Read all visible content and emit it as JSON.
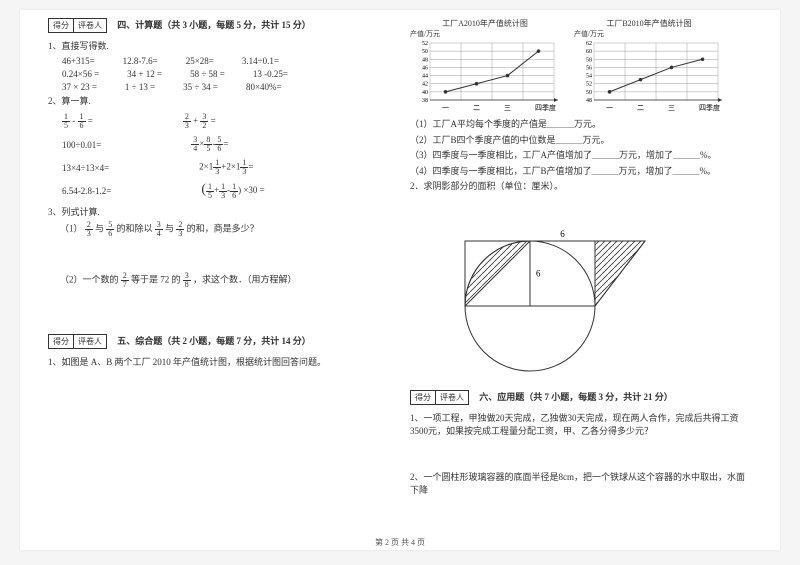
{
  "scorebox": {
    "c1": "得分",
    "c2": "评卷人"
  },
  "section4": {
    "title": "四、计算题（共 3 小题，每题 5 分，共计 15 分）",
    "q1": "1、直接写得数.",
    "row1": [
      "46+315=",
      "12.8-7.6=",
      "25×28=",
      "3.14÷0.1="
    ],
    "row2": [
      "0.24×56 =",
      "34 + 12 =",
      "58 ÷ 58 =",
      "13 -0.25="
    ],
    "row3": [
      "37 × 23 =",
      "1 ÷ 13 =",
      "35 ÷ 34 =",
      "80×40%="
    ],
    "q2": "2、算一算.",
    "f1a": {
      "n": "1",
      "d": "5"
    },
    "f1b": {
      "n": "1",
      "d": "6"
    },
    "f1op": "-",
    "f1eq": "=",
    "f2a": {
      "n": "2",
      "d": "3"
    },
    "f2b": {
      "n": "3",
      "d": "2"
    },
    "f2op": "+",
    "f2eq": "=",
    "l3": "100÷0.01=",
    "f3parts": [
      {
        "n": "3",
        "d": "4"
      },
      "×",
      {
        "n": "8",
        "d": "5"
      },
      "-",
      {
        "n": "5",
        "d": "6"
      },
      "="
    ],
    "l4": "13×4÷13×4=",
    "f4parts": [
      "2×1",
      {
        "n": "1",
        "d": "3"
      },
      "+2×1",
      {
        "n": "1",
        "d": "3"
      },
      "="
    ],
    "l5": "6.54-2.8-1.2=",
    "f5parts": [
      "(",
      {
        "n": "1",
        "d": "5"
      },
      "+",
      {
        "n": "1",
        "d": "3"
      },
      "-",
      {
        "n": "1",
        "d": "6"
      },
      ") ×30 ="
    ],
    "q3": "3、列式计算.",
    "q3_1_pre": "（1）",
    "q3_1_a": {
      "n": "2",
      "d": "3"
    },
    "q3_1_t1": "与",
    "q3_1_b": {
      "n": "5",
      "d": "6"
    },
    "q3_1_t2": "的和除以",
    "q3_1_c": {
      "n": "3",
      "d": "4"
    },
    "q3_1_t3": "与",
    "q3_1_d": {
      "n": "2",
      "d": "3"
    },
    "q3_1_t4": "的和，商是多少？",
    "q3_2_pre": "（2）一个数的",
    "q3_2_a": {
      "n": "2",
      "d": "7"
    },
    "q3_2_t1": "等于是 72 的",
    "q3_2_b": {
      "n": "3",
      "d": "8"
    },
    "q3_2_t2": "，求这个数．（用方程解）"
  },
  "section5": {
    "title": "五、综合题（共 2 小题，每题 7 分，共计 14 分）",
    "q1": "1、如图是 A、B 两个工厂 2010 年产值统计图，根据统计图回答问题。"
  },
  "chartA": {
    "title": "工厂A2010年产值统计图",
    "ylabel": "产值/万元",
    "yticks": [
      38,
      40,
      42,
      44,
      46,
      48,
      50,
      52
    ],
    "xlabels": [
      "一",
      "二",
      "三",
      "四"
    ],
    "xaxis": "季度",
    "points": [
      [
        0,
        40
      ],
      [
        1,
        42
      ],
      [
        2,
        44
      ],
      [
        3,
        50
      ]
    ],
    "line_color": "#333",
    "grid_color": "#888",
    "bg": "#fff"
  },
  "chartB": {
    "title": "工厂B2010年产值统计图",
    "ylabel": "产值/万元",
    "yticks": [
      48,
      50,
      52,
      54,
      56,
      58,
      60,
      62
    ],
    "xlabels": [
      "一",
      "二",
      "三",
      "四"
    ],
    "xaxis": "季度",
    "points": [
      [
        0,
        50
      ],
      [
        1,
        53
      ],
      [
        2,
        56
      ],
      [
        3,
        58
      ]
    ],
    "line_color": "#333",
    "grid_color": "#888",
    "bg": "#fff"
  },
  "right_q": {
    "l1": "（1）工厂A平均每个季度的产值是＿＿＿万元。",
    "l2": "（2）工厂B四个季度产值的中位数是＿＿＿万元。",
    "l3": "（3）四季度与一季度相比，工厂A产值增加了＿＿＿万元，增加了＿＿＿%。",
    "l4": "（4）四季度与一季度相比，工厂B产值增加了＿＿＿万元，增加了＿＿＿%。",
    "q2": "2．求阴影部分的面积（单位：厘米）。",
    "circle_r": 6,
    "top_label": "6",
    "side_label": "6",
    "stroke": "#333"
  },
  "section6": {
    "title": "六、应用题（共 7 小题，每题 3 分，共计 21 分）",
    "q1": "1、一项工程，甲独做20天完成，乙独做30天完成，现在两人合作，完成后共得工资3500元，如果按完成工程量分配工资，甲、乙各分得多少元？",
    "q2": "2、一个圆柱形玻璃容器的底面半径是8cm，把一个铁球从这个容器的水中取出，水面下降"
  },
  "footer": "第 2 页 共 4 页"
}
